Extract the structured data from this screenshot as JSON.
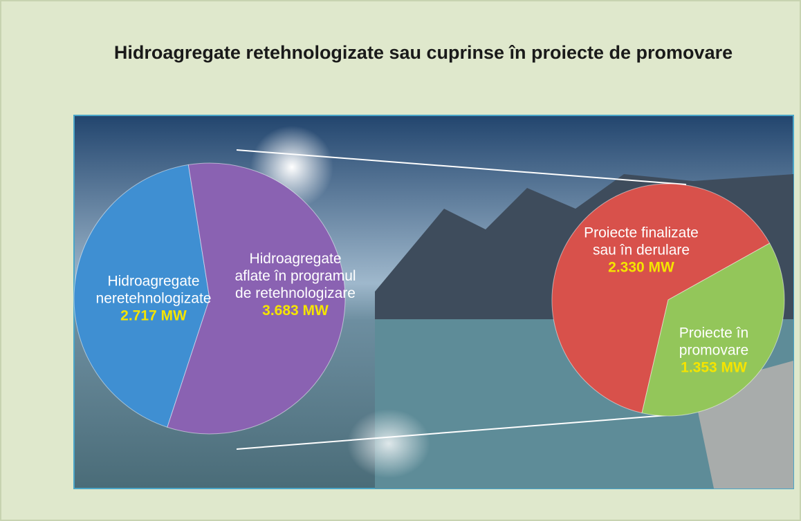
{
  "chart_data": {
    "type": "pie_of_pie",
    "title": "Hidroagregate retehnologizate sau cuprinse în proiecte de promovare",
    "pies": [
      {
        "categories": [
          "Hidroagregate neretehnologizate",
          "Hidroagregate aflate în programul de retehnologizare"
        ],
        "values": [
          2717,
          3683
        ],
        "value_labels": [
          "2.717 MW",
          "3.683 MW"
        ],
        "colors": [
          "#3f8fd2",
          "#8a62b2"
        ]
      },
      {
        "categories": [
          "Proiecte finalizate sau în derulare",
          "Proiecte în promovare"
        ],
        "values": [
          2330,
          1353
        ],
        "value_labels": [
          "2.330 MW",
          "1.353 MW"
        ],
        "colors": [
          "#d8514b",
          "#93c65a"
        ]
      }
    ]
  }
}
